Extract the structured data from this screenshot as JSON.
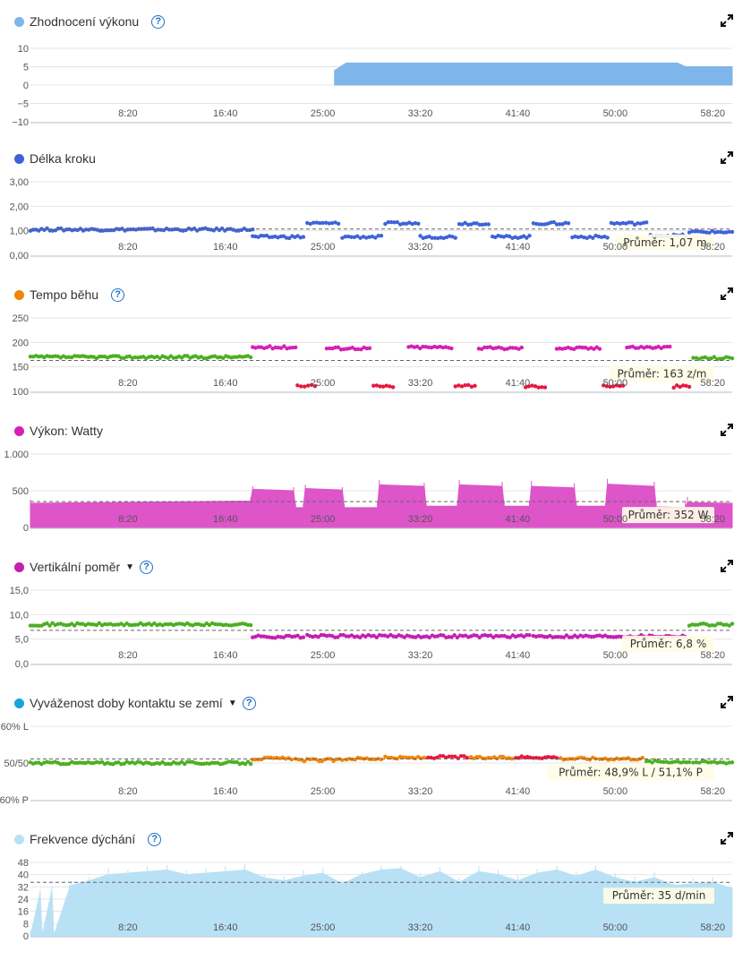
{
  "x_ticks": [
    "8:20",
    "16:40",
    "25:00",
    "33:20",
    "41:40",
    "50:00",
    "58:20"
  ],
  "colors": {
    "help": "#1c6fc4",
    "grid": "#e4e4e4",
    "axis": "#c8d3dc",
    "dash": "#666666"
  },
  "chart_data": [
    {
      "id": "performance",
      "type": "area",
      "title": "Zhodnocení výkonu",
      "color": "#7fb6ea",
      "yticks": [
        "10",
        "5",
        "0",
        "−5",
        "−10"
      ],
      "ylim": [
        -10,
        10
      ],
      "xlim": [
        0,
        3600
      ],
      "x": [
        0,
        1560,
        1590,
        1620,
        3320,
        3360,
        3600
      ],
      "values": [
        null,
        4,
        5,
        6,
        6,
        5,
        5
      ]
    },
    {
      "id": "stride",
      "type": "scatter",
      "title": "Délka kroku",
      "color": "#3f63d6",
      "yticks": [
        "3,00",
        "2,00",
        "1,00",
        "0,00"
      ],
      "ylim": [
        0,
        3
      ],
      "xlim": [
        0,
        3600
      ],
      "average_label": "Průměr: 1,07 m",
      "average_value": 1.07,
      "segments": [
        {
          "x": [
            0,
            1140
          ],
          "y": 1.05,
          "color": "#3f63d6"
        },
        {
          "x": [
            1140,
            1400
          ],
          "y": 0.75,
          "color": "#3f63d6"
        },
        {
          "x": [
            1420,
            1580
          ],
          "y": 1.3,
          "color": "#3f63d6"
        },
        {
          "x": [
            1600,
            1800
          ],
          "y": 0.75,
          "color": "#3f63d6"
        },
        {
          "x": [
            1820,
            1990
          ],
          "y": 1.3,
          "color": "#3f63d6"
        },
        {
          "x": [
            2000,
            2180
          ],
          "y": 0.75,
          "color": "#3f63d6"
        },
        {
          "x": [
            2200,
            2350
          ],
          "y": 1.3,
          "color": "#3f63d6"
        },
        {
          "x": [
            2370,
            2560
          ],
          "y": 0.75,
          "color": "#3f63d6"
        },
        {
          "x": [
            2580,
            2760
          ],
          "y": 1.3,
          "color": "#3f63d6"
        },
        {
          "x": [
            2780,
            2960
          ],
          "y": 0.75,
          "color": "#3f63d6"
        },
        {
          "x": [
            2980,
            3160
          ],
          "y": 1.3,
          "color": "#3f63d6"
        },
        {
          "x": [
            3180,
            3360
          ],
          "y": 0.8,
          "color": "#3f63d6"
        },
        {
          "x": [
            3380,
            3600
          ],
          "y": 0.95,
          "color": "#3f63d6"
        }
      ]
    },
    {
      "id": "cadence",
      "type": "scatter",
      "title": "Tempo běhu",
      "color": "#f0850a",
      "yticks": [
        "250",
        "200",
        "150",
        "100"
      ],
      "ylim": [
        100,
        250
      ],
      "xlim": [
        0,
        3600
      ],
      "average_label": "Průměr: 163 z/m",
      "average_value": 163,
      "segments": [
        {
          "x": [
            0,
            1130
          ],
          "y": 170,
          "color": "#4caf22"
        },
        {
          "x": [
            1140,
            1360
          ],
          "y": 190,
          "color": "#d61fb5"
        },
        {
          "x": [
            1370,
            1460
          ],
          "y": 112,
          "color": "#e8173f"
        },
        {
          "x": [
            1520,
            1740
          ],
          "y": 188,
          "color": "#d61fb5"
        },
        {
          "x": [
            1760,
            1860
          ],
          "y": 110,
          "color": "#e8173f"
        },
        {
          "x": [
            1940,
            2160
          ],
          "y": 190,
          "color": "#d61fb5"
        },
        {
          "x": [
            2180,
            2280
          ],
          "y": 112,
          "color": "#e8173f"
        },
        {
          "x": [
            2300,
            2520
          ],
          "y": 188,
          "color": "#d61fb5"
        },
        {
          "x": [
            2540,
            2640
          ],
          "y": 110,
          "color": "#e8173f"
        },
        {
          "x": [
            2700,
            2920
          ],
          "y": 188,
          "color": "#d61fb5"
        },
        {
          "x": [
            2940,
            3040
          ],
          "y": 112,
          "color": "#e8173f"
        },
        {
          "x": [
            3060,
            3280
          ],
          "y": 190,
          "color": "#d61fb5"
        },
        {
          "x": [
            3300,
            3380
          ],
          "y": 110,
          "color": "#e8173f"
        },
        {
          "x": [
            3400,
            3600
          ],
          "y": 168,
          "color": "#4caf22"
        }
      ]
    },
    {
      "id": "power",
      "type": "area",
      "title": "Výkon: Watty",
      "color": "#dd55c8",
      "yticks": [
        "1.000",
        "500",
        "0"
      ],
      "ylim": [
        0,
        1000
      ],
      "xlim": [
        0,
        3600
      ],
      "average_label": "Průměr: 352 W",
      "average_value": 352,
      "x": [
        0,
        1130,
        1140,
        1350,
        1360,
        1400,
        1410,
        1600,
        1610,
        1780,
        1790,
        2020,
        2030,
        2190,
        2200,
        2420,
        2430,
        2560,
        2570,
        2790,
        2800,
        2950,
        2960,
        3200,
        3210,
        3360,
        3370,
        3600
      ],
      "values": [
        330,
        360,
        520,
        500,
        270,
        270,
        530,
        510,
        270,
        270,
        580,
        560,
        290,
        290,
        580,
        560,
        290,
        290,
        560,
        540,
        290,
        290,
        590,
        560,
        280,
        270,
        340,
        330
      ]
    },
    {
      "id": "vertical_ratio",
      "type": "scatter",
      "title": "Vertikální poměr",
      "color": "#c41fb0",
      "yticks": [
        "15,0",
        "10,0",
        "5,0",
        "0,0"
      ],
      "ylim": [
        0,
        15
      ],
      "xlim": [
        0,
        3600
      ],
      "average_label": "Průměr: 6,8 %",
      "average_value": 6.8,
      "segments": [
        {
          "x": [
            0,
            1130
          ],
          "y": 8.0,
          "color": "#4caf22"
        },
        {
          "x": [
            1140,
            1400
          ],
          "y": 5.5,
          "color": "#c41fb0"
        },
        {
          "x": [
            1420,
            2560
          ],
          "y": 5.6,
          "color": "#c41fb0"
        },
        {
          "x": [
            2580,
            3360
          ],
          "y": 5.6,
          "color": "#c41fb0"
        },
        {
          "x": [
            3380,
            3600
          ],
          "y": 8.0,
          "color": "#4caf22"
        }
      ]
    },
    {
      "id": "gct_balance",
      "type": "scatter",
      "title": "Vyváženost doby kontaktu se zemí",
      "color": "#1aa3dc",
      "yticks": [
        "60% L",
        "50/50",
        "60% P"
      ],
      "ylim": [
        60,
        40
      ],
      "xlim": [
        0,
        3600
      ],
      "average_label": "Průměr: 48,9% L / 51,1% P",
      "average_value": 48.9,
      "segments": [
        {
          "x": [
            0,
            1130
          ],
          "y": 50.0,
          "color": "#4caf22"
        },
        {
          "x": [
            1140,
            1340
          ],
          "y": 48.8,
          "color": "#f0850a"
        },
        {
          "x": [
            1360,
            1600
          ],
          "y": 49.2,
          "color": "#f0850a"
        },
        {
          "x": [
            1620,
            1800
          ],
          "y": 48.8,
          "color": "#f0850a"
        },
        {
          "x": [
            1820,
            2020
          ],
          "y": 48.6,
          "color": "#f0850a"
        },
        {
          "x": [
            2040,
            2240
          ],
          "y": 48.4,
          "color": "#e8173f"
        },
        {
          "x": [
            2260,
            2470
          ],
          "y": 48.6,
          "color": "#f0850a"
        },
        {
          "x": [
            2490,
            2700
          ],
          "y": 48.4,
          "color": "#e8173f"
        },
        {
          "x": [
            2720,
            2900
          ],
          "y": 48.8,
          "color": "#f0850a"
        },
        {
          "x": [
            2920,
            3140
          ],
          "y": 48.8,
          "color": "#f0850a"
        },
        {
          "x": [
            3160,
            3380
          ],
          "y": 49.6,
          "color": "#4caf22"
        },
        {
          "x": [
            3400,
            3600
          ],
          "y": 49.8,
          "color": "#4caf22"
        }
      ]
    },
    {
      "id": "respiration",
      "type": "area",
      "title": "Frekvence dýchání",
      "color": "#b9e1f5",
      "yticks": [
        "48",
        "40",
        "32",
        "24",
        "16",
        "8",
        "0"
      ],
      "ylim": [
        0,
        48
      ],
      "xlim": [
        0,
        3600
      ],
      "average_label": "Průměr: 35 d/min",
      "average_value": 35,
      "x": [
        0,
        50,
        60,
        110,
        120,
        200,
        210,
        300,
        400,
        500,
        600,
        700,
        800,
        900,
        1000,
        1100,
        1200,
        1300,
        1400,
        1500,
        1600,
        1700,
        1800,
        1900,
        2000,
        2100,
        2200,
        2300,
        2400,
        2500,
        2600,
        2700,
        2800,
        2900,
        3000,
        3100,
        3200,
        3300,
        3400,
        3500,
        3600
      ],
      "values": [
        0,
        28,
        0,
        30,
        0,
        31,
        33,
        36,
        40,
        41,
        42,
        43,
        40,
        41,
        42,
        43,
        38,
        36,
        39,
        41,
        34,
        40,
        43,
        44,
        38,
        42,
        35,
        42,
        40,
        36,
        41,
        43,
        39,
        43,
        38,
        35,
        38,
        33,
        34,
        35,
        31
      ]
    }
  ],
  "panels": [
    {
      "title": "Zhodnocení výkonu"
    },
    {
      "title": "Délka kroku"
    },
    {
      "title": "Tempo běhu"
    },
    {
      "title": "Výkon: Watty"
    },
    {
      "title": "Vertikální poměr"
    },
    {
      "title": "Vyváženost doby kontaktu se zemí"
    },
    {
      "title": "Frekvence dýchání"
    }
  ]
}
